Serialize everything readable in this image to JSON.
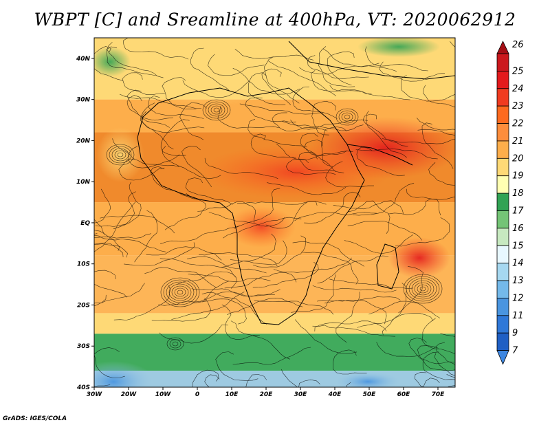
{
  "title": "WBPT [C] and Sreamline at 400hPa, VT: 2020062912",
  "credit": "GrADS: IGES/COLA",
  "map": {
    "lon_range": [
      -30,
      75
    ],
    "lat_range": [
      -40,
      45
    ],
    "lon_ticks": [
      {
        "value": -30,
        "label": "30W"
      },
      {
        "value": -20,
        "label": "20W"
      },
      {
        "value": -10,
        "label": "10W"
      },
      {
        "value": 0,
        "label": "0"
      },
      {
        "value": 10,
        "label": "10E"
      },
      {
        "value": 20,
        "label": "20E"
      },
      {
        "value": 30,
        "label": "30E"
      },
      {
        "value": 40,
        "label": "40E"
      },
      {
        "value": 50,
        "label": "50E"
      },
      {
        "value": 60,
        "label": "60E"
      },
      {
        "value": 70,
        "label": "70E"
      }
    ],
    "lat_ticks": [
      {
        "value": 40,
        "label": "40N"
      },
      {
        "value": 30,
        "label": "30N"
      },
      {
        "value": 20,
        "label": "20N"
      },
      {
        "value": 10,
        "label": "10N"
      },
      {
        "value": 0,
        "label": "EQ"
      },
      {
        "value": -10,
        "label": "10S"
      },
      {
        "value": -20,
        "label": "20S"
      },
      {
        "value": -30,
        "label": "30S"
      },
      {
        "value": -40,
        "label": "40S"
      }
    ]
  },
  "colorbar": {
    "levels": [
      {
        "label": "26",
        "color": "#a50f15"
      },
      {
        "label": "25",
        "color": "#cb181d"
      },
      {
        "label": "24",
        "color": "#e31a1c"
      },
      {
        "label": "23",
        "color": "#f03b20"
      },
      {
        "label": "22",
        "color": "#fd6a1f"
      },
      {
        "label": "21",
        "color": "#fd8d3c"
      },
      {
        "label": "20",
        "color": "#fdae4b"
      },
      {
        "label": "19",
        "color": "#fed976"
      },
      {
        "label": "18",
        "color": "#ffffb2"
      },
      {
        "label": "17",
        "color": "#31a354"
      },
      {
        "label": "16",
        "color": "#74c476"
      },
      {
        "label": "15",
        "color": "#c7e9c0"
      },
      {
        "label": "14",
        "color": "#e8f8ff"
      },
      {
        "label": "13",
        "color": "#a6d8f0"
      },
      {
        "label": "12",
        "color": "#74b9ea"
      },
      {
        "label": "11",
        "color": "#4a95e0"
      },
      {
        "label": "9",
        "color": "#2f78d8"
      },
      {
        "label": "7",
        "color": "#1f5fc4"
      }
    ],
    "bottom_color": "#3d86e0"
  },
  "field_bands": [
    {
      "lat_top": 45,
      "lat_bottom": 30,
      "color": "#fed976"
    },
    {
      "lat_top": 30,
      "lat_bottom": 22,
      "color": "#fdae4b"
    },
    {
      "lat_top": 22,
      "lat_bottom": 5,
      "color": "#f08a2c"
    },
    {
      "lat_top": 5,
      "lat_bottom": -8,
      "color": "#fdae4b"
    },
    {
      "lat_top": -8,
      "lat_bottom": -22,
      "color": "#fdb557"
    },
    {
      "lat_top": -22,
      "lat_bottom": -27,
      "color": "#fed976"
    },
    {
      "lat_top": -27,
      "lat_bottom": -36,
      "color": "#41ab5d"
    },
    {
      "lat_top": -36,
      "lat_bottom": -40,
      "color": "#9ecae1"
    }
  ]
}
